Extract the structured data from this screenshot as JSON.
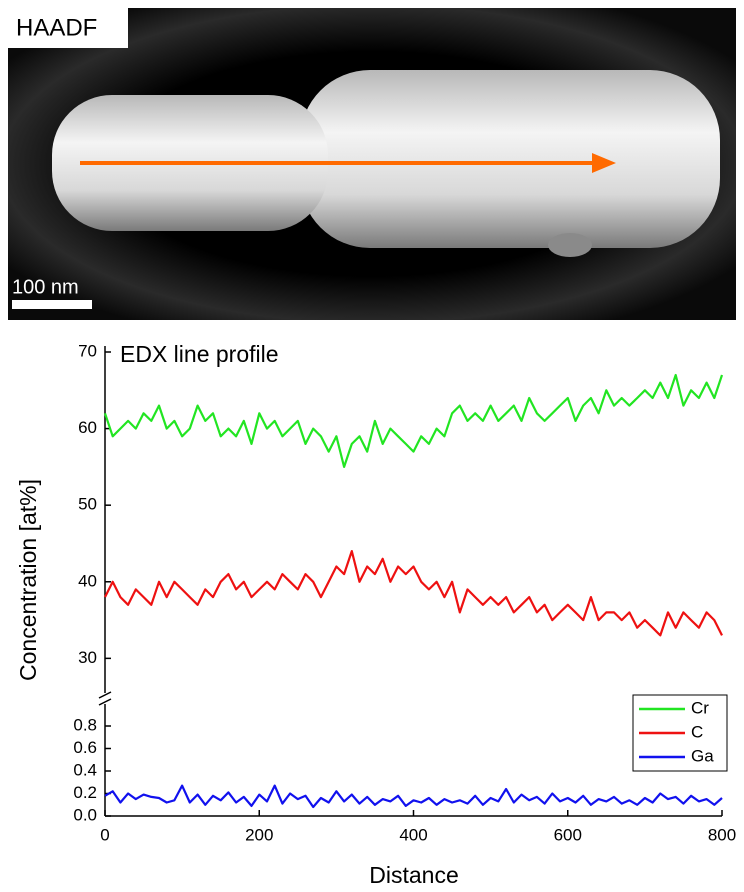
{
  "image": {
    "label": "HAADF",
    "scale_bar": "100 nm"
  },
  "chart_data": {
    "type": "line",
    "title": "EDX line profile",
    "x_label": "Distance",
    "y_label": "Concentration [at%]",
    "x": [
      0,
      10,
      20,
      30,
      40,
      50,
      60,
      70,
      80,
      90,
      100,
      110,
      120,
      130,
      140,
      150,
      160,
      170,
      180,
      190,
      200,
      210,
      220,
      230,
      240,
      250,
      260,
      270,
      280,
      290,
      300,
      310,
      320,
      330,
      340,
      350,
      360,
      370,
      380,
      390,
      400,
      410,
      420,
      430,
      440,
      450,
      460,
      470,
      480,
      490,
      500,
      510,
      520,
      530,
      540,
      550,
      560,
      570,
      580,
      590,
      600,
      610,
      620,
      630,
      640,
      650,
      660,
      670,
      680,
      690,
      700,
      710,
      720,
      730,
      740,
      750,
      760,
      770,
      780,
      790,
      800
    ],
    "series": [
      {
        "name": "Cr",
        "color": "#22e522",
        "values": [
          62,
          59,
          60,
          61,
          60,
          62,
          61,
          63,
          60,
          61,
          59,
          60,
          63,
          61,
          62,
          59,
          60,
          59,
          61,
          58,
          62,
          60,
          61,
          59,
          60,
          61,
          58,
          60,
          59,
          57,
          59,
          55,
          58,
          59,
          57,
          61,
          58,
          60,
          59,
          58,
          57,
          59,
          58,
          60,
          59,
          62,
          63,
          61,
          62,
          61,
          63,
          61,
          62,
          63,
          61,
          64,
          62,
          61,
          62,
          63,
          64,
          61,
          63,
          64,
          62,
          65,
          63,
          64,
          63,
          64,
          65,
          64,
          66,
          64,
          67,
          63,
          65,
          64,
          66,
          64,
          67
        ]
      },
      {
        "name": "C",
        "color": "#ee1111",
        "values": [
          38,
          40,
          38,
          37,
          39,
          38,
          37,
          40,
          38,
          40,
          39,
          38,
          37,
          39,
          38,
          40,
          41,
          39,
          40,
          38,
          39,
          40,
          39,
          41,
          40,
          39,
          41,
          40,
          38,
          40,
          42,
          41,
          44,
          40,
          42,
          41,
          43,
          40,
          42,
          41,
          42,
          40,
          39,
          40,
          38,
          40,
          36,
          39,
          38,
          37,
          38,
          37,
          38,
          36,
          37,
          38,
          36,
          37,
          35,
          36,
          37,
          36,
          35,
          38,
          35,
          36,
          36,
          35,
          36,
          34,
          35,
          34,
          33,
          36,
          34,
          36,
          35,
          34,
          36,
          35,
          33
        ]
      },
      {
        "name": "Ga",
        "color": "#1111ee",
        "axis": "y2",
        "values": [
          0.18,
          0.22,
          0.12,
          0.2,
          0.15,
          0.19,
          0.17,
          0.16,
          0.12,
          0.14,
          0.27,
          0.12,
          0.19,
          0.1,
          0.18,
          0.14,
          0.21,
          0.12,
          0.17,
          0.09,
          0.19,
          0.13,
          0.27,
          0.11,
          0.2,
          0.15,
          0.18,
          0.08,
          0.16,
          0.12,
          0.22,
          0.13,
          0.19,
          0.11,
          0.17,
          0.1,
          0.15,
          0.13,
          0.18,
          0.09,
          0.14,
          0.12,
          0.16,
          0.1,
          0.15,
          0.12,
          0.14,
          0.11,
          0.18,
          0.1,
          0.16,
          0.13,
          0.24,
          0.12,
          0.19,
          0.14,
          0.17,
          0.11,
          0.2,
          0.13,
          0.16,
          0.12,
          0.18,
          0.1,
          0.15,
          0.13,
          0.17,
          0.11,
          0.14,
          0.1,
          0.16,
          0.12,
          0.2,
          0.15,
          0.17,
          0.11,
          0.18,
          0.13,
          0.15,
          0.1,
          0.16
        ]
      }
    ],
    "xlim": [
      0,
      800
    ],
    "xticks": [
      0,
      200,
      400,
      600,
      800
    ],
    "ylim": [
      26,
      70
    ],
    "yticks": [
      30,
      40,
      50,
      60,
      70
    ],
    "y2lim": [
      0,
      0.96
    ],
    "y2ticks": [
      {
        "value": 0,
        "label": "0.0"
      },
      0.2,
      0.4,
      0.6,
      0.8
    ],
    "legend": "lower right"
  }
}
